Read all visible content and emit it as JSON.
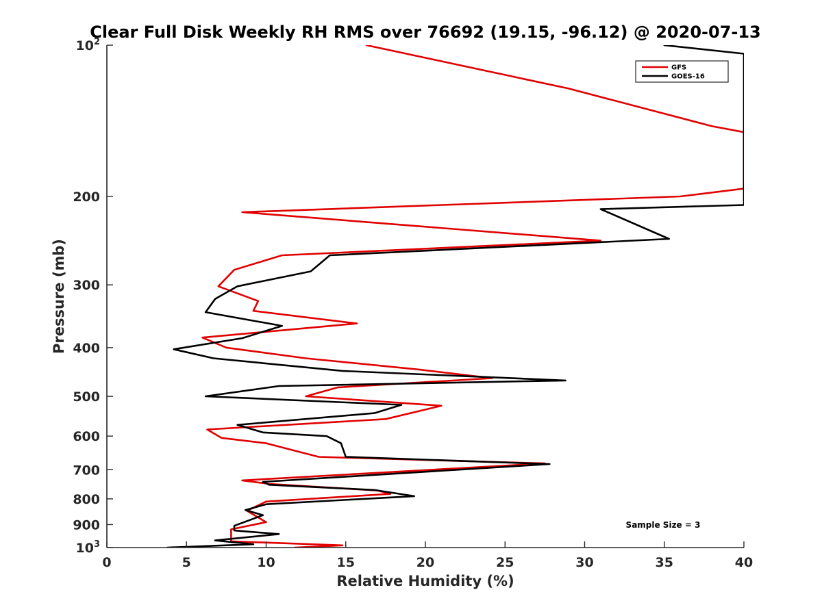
{
  "chart_data": {
    "type": "line",
    "title": "Clear Full Disk Weekly RH RMS over 76692 (19.15, -96.12) @ 2020-07-13",
    "xlabel": "Relative Humidity (%)",
    "ylabel": "Pressure (mb)",
    "xlim": [
      0,
      40
    ],
    "ylim": [
      100,
      1000
    ],
    "yscale": "log",
    "y_reversed": true,
    "x_ticks": [
      0,
      5,
      10,
      15,
      20,
      25,
      30,
      35,
      40
    ],
    "x_tick_labels": [
      "0",
      "5",
      "10",
      "15",
      "20",
      "25",
      "30",
      "35",
      "40"
    ],
    "y_ticks": [
      100,
      200,
      300,
      400,
      500,
      600,
      700,
      800,
      900,
      1000
    ],
    "y_tick_labels": [
      {
        "base": "10",
        "exp": "2"
      },
      {
        "text": "200"
      },
      {
        "text": "300"
      },
      {
        "text": "400"
      },
      {
        "text": "500"
      },
      {
        "text": "600"
      },
      {
        "text": "700"
      },
      {
        "text": "800"
      },
      {
        "text": "900"
      },
      {
        "base": "10",
        "exp": "3"
      }
    ],
    "legend_position": "top-right",
    "annotation": "Sample Size = 3",
    "series": [
      {
        "name": "GFS",
        "color": "#e00000",
        "points": [
          {
            "x": 16.3,
            "y": 100
          },
          {
            "x": 29.0,
            "y": 122
          },
          {
            "x": 38.0,
            "y": 145
          },
          {
            "x": 40.0,
            "y": 149
          },
          {
            "x": 40.0,
            "y": 193
          },
          {
            "x": 36.0,
            "y": 200
          },
          {
            "x": 8.5,
            "y": 215
          },
          {
            "x": 31.0,
            "y": 245
          },
          {
            "x": 11.0,
            "y": 262
          },
          {
            "x": 8.0,
            "y": 280
          },
          {
            "x": 7.0,
            "y": 302
          },
          {
            "x": 9.5,
            "y": 323
          },
          {
            "x": 9.2,
            "y": 338
          },
          {
            "x": 15.7,
            "y": 358
          },
          {
            "x": 6.0,
            "y": 382
          },
          {
            "x": 7.5,
            "y": 400
          },
          {
            "x": 12.5,
            "y": 420
          },
          {
            "x": 19.5,
            "y": 442
          },
          {
            "x": 24.2,
            "y": 460
          },
          {
            "x": 14.5,
            "y": 480
          },
          {
            "x": 12.5,
            "y": 500
          },
          {
            "x": 21.0,
            "y": 522
          },
          {
            "x": 17.5,
            "y": 555
          },
          {
            "x": 6.3,
            "y": 582
          },
          {
            "x": 7.2,
            "y": 605
          },
          {
            "x": 10.0,
            "y": 620
          },
          {
            "x": 13.3,
            "y": 660
          },
          {
            "x": 27.5,
            "y": 680
          },
          {
            "x": 8.5,
            "y": 735
          },
          {
            "x": 10.2,
            "y": 747
          },
          {
            "x": 17.0,
            "y": 770
          },
          {
            "x": 17.8,
            "y": 782
          },
          {
            "x": 10.0,
            "y": 810
          },
          {
            "x": 8.8,
            "y": 845
          },
          {
            "x": 10.0,
            "y": 890
          },
          {
            "x": 7.8,
            "y": 920
          },
          {
            "x": 7.8,
            "y": 972
          },
          {
            "x": 14.8,
            "y": 990
          },
          {
            "x": 11.8,
            "y": 1000
          }
        ]
      },
      {
        "name": "GOES-16",
        "color": "#000000",
        "points": [
          {
            "x": 35.0,
            "y": 100
          },
          {
            "x": 40.0,
            "y": 104
          },
          {
            "x": 40.0,
            "y": 208
          },
          {
            "x": 31.0,
            "y": 212
          },
          {
            "x": 35.3,
            "y": 243
          },
          {
            "x": 14.0,
            "y": 262
          },
          {
            "x": 12.8,
            "y": 282
          },
          {
            "x": 8.2,
            "y": 302
          },
          {
            "x": 6.8,
            "y": 320
          },
          {
            "x": 6.2,
            "y": 340
          },
          {
            "x": 11.0,
            "y": 362
          },
          {
            "x": 8.5,
            "y": 383
          },
          {
            "x": 4.2,
            "y": 403
          },
          {
            "x": 6.7,
            "y": 420
          },
          {
            "x": 14.8,
            "y": 445
          },
          {
            "x": 28.8,
            "y": 465
          },
          {
            "x": 10.8,
            "y": 477
          },
          {
            "x": 6.2,
            "y": 500
          },
          {
            "x": 18.5,
            "y": 520
          },
          {
            "x": 16.8,
            "y": 540
          },
          {
            "x": 8.2,
            "y": 570
          },
          {
            "x": 9.8,
            "y": 590
          },
          {
            "x": 13.8,
            "y": 600
          },
          {
            "x": 14.7,
            "y": 620
          },
          {
            "x": 15.0,
            "y": 660
          },
          {
            "x": 27.8,
            "y": 682
          },
          {
            "x": 15.8,
            "y": 720
          },
          {
            "x": 9.8,
            "y": 740
          },
          {
            "x": 10.2,
            "y": 750
          },
          {
            "x": 16.8,
            "y": 768
          },
          {
            "x": 19.3,
            "y": 790
          },
          {
            "x": 10.0,
            "y": 820
          },
          {
            "x": 8.7,
            "y": 842
          },
          {
            "x": 9.8,
            "y": 862
          },
          {
            "x": 8.0,
            "y": 905
          },
          {
            "x": 8.0,
            "y": 925
          },
          {
            "x": 10.8,
            "y": 940
          },
          {
            "x": 6.8,
            "y": 968
          },
          {
            "x": 9.2,
            "y": 985
          },
          {
            "x": 3.8,
            "y": 1000
          }
        ]
      }
    ]
  }
}
